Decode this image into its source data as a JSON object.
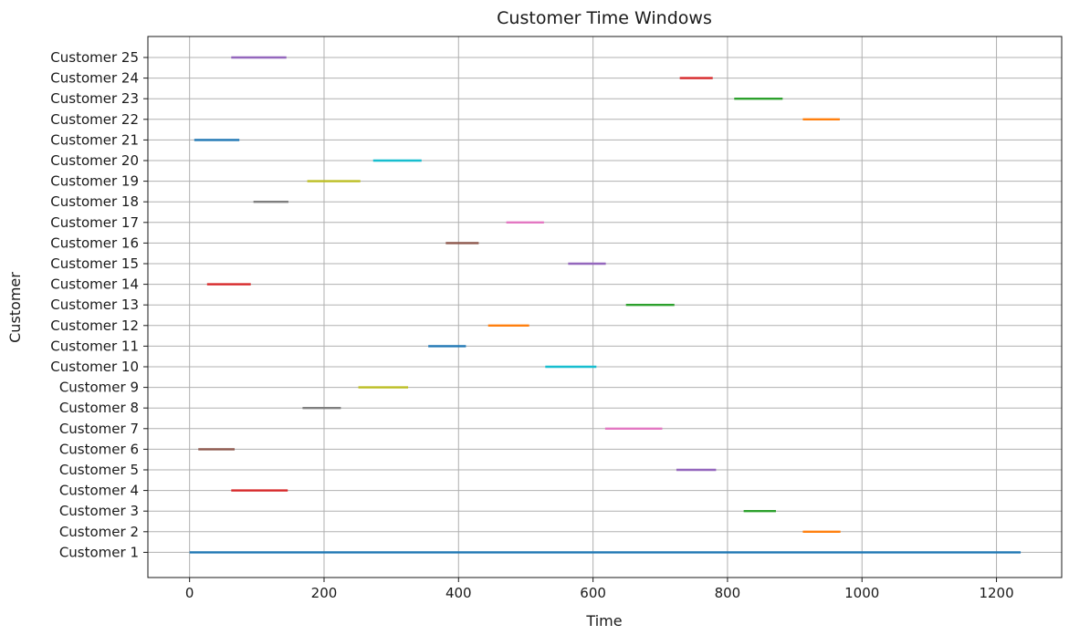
{
  "chart_data": {
    "type": "timeline",
    "title": "Customer Time Windows",
    "xlabel": "Time",
    "ylabel": "Customer",
    "xlim": [
      -62,
      1297
    ],
    "xticks": [
      0,
      200,
      400,
      600,
      800,
      1000,
      1200
    ],
    "grid": true,
    "series": [
      {
        "name": "Customer 1",
        "start": 0,
        "end": 1236,
        "color": "#1f77b4"
      },
      {
        "name": "Customer 2",
        "start": 912,
        "end": 968,
        "color": "#ff7f0e"
      },
      {
        "name": "Customer 3",
        "start": 824,
        "end": 872,
        "color": "#2ca02c"
      },
      {
        "name": "Customer 4",
        "start": 62,
        "end": 146,
        "color": "#d62728"
      },
      {
        "name": "Customer 5",
        "start": 724,
        "end": 783,
        "color": "#9467bd"
      },
      {
        "name": "Customer 6",
        "start": 13,
        "end": 67,
        "color": "#8c564b"
      },
      {
        "name": "Customer 7",
        "start": 618,
        "end": 703,
        "color": "#e377c2"
      },
      {
        "name": "Customer 8",
        "start": 168,
        "end": 225,
        "color": "#7f7f7f"
      },
      {
        "name": "Customer 9",
        "start": 251,
        "end": 325,
        "color": "#bcbd22"
      },
      {
        "name": "Customer 10",
        "start": 529,
        "end": 605,
        "color": "#17becf"
      },
      {
        "name": "Customer 11",
        "start": 355,
        "end": 411,
        "color": "#1f77b4"
      },
      {
        "name": "Customer 12",
        "start": 444,
        "end": 505,
        "color": "#ff7f0e"
      },
      {
        "name": "Customer 13",
        "start": 649,
        "end": 721,
        "color": "#2ca02c"
      },
      {
        "name": "Customer 14",
        "start": 26,
        "end": 91,
        "color": "#d62728"
      },
      {
        "name": "Customer 15",
        "start": 563,
        "end": 619,
        "color": "#9467bd"
      },
      {
        "name": "Customer 16",
        "start": 381,
        "end": 430,
        "color": "#8c564b"
      },
      {
        "name": "Customer 17",
        "start": 471,
        "end": 527,
        "color": "#e377c2"
      },
      {
        "name": "Customer 18",
        "start": 95,
        "end": 147,
        "color": "#7f7f7f"
      },
      {
        "name": "Customer 19",
        "start": 175,
        "end": 254,
        "color": "#bcbd22"
      },
      {
        "name": "Customer 20",
        "start": 273,
        "end": 345,
        "color": "#17becf"
      },
      {
        "name": "Customer 21",
        "start": 7,
        "end": 74,
        "color": "#1f77b4"
      },
      {
        "name": "Customer 22",
        "start": 912,
        "end": 967,
        "color": "#ff7f0e"
      },
      {
        "name": "Customer 23",
        "start": 810,
        "end": 882,
        "color": "#2ca02c"
      },
      {
        "name": "Customer 24",
        "start": 729,
        "end": 778,
        "color": "#d62728"
      },
      {
        "name": "Customer 25",
        "start": 62,
        "end": 144,
        "color": "#9467bd"
      }
    ]
  }
}
